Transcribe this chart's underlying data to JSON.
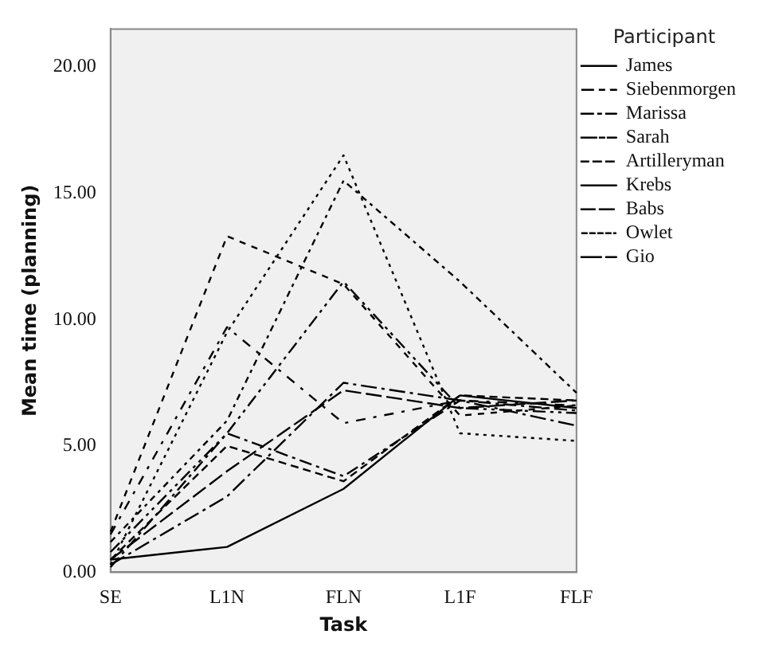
{
  "chart_data": {
    "type": "line",
    "xlabel": "Task",
    "ylabel": "Mean time (planning)",
    "legend_title": "Participant",
    "categories": [
      "SE",
      "L1N",
      "FLN",
      "L1F",
      "FLF"
    ],
    "ylim": [
      0,
      21.5
    ],
    "yticks": [
      {
        "value": 0,
        "label": "0.00"
      },
      {
        "value": 5,
        "label": "5.00"
      },
      {
        "value": 10,
        "label": "10.00"
      },
      {
        "value": 15,
        "label": "15.00"
      },
      {
        "value": 20,
        "label": "20.00"
      }
    ],
    "grid": false,
    "legend": "right",
    "marker": "none",
    "series": [
      {
        "name": "James",
        "color": "#000000",
        "line_style": "solid",
        "values": [
          0.5,
          1.0,
          3.3,
          7.0,
          6.5
        ]
      },
      {
        "name": "Siebenmorgen",
        "color": "#000000",
        "line_style": "dashed",
        "values": [
          1.5,
          9.7,
          5.9,
          6.8,
          6.6
        ]
      },
      {
        "name": "Marissa",
        "color": "#000000",
        "line_style": "dashed",
        "values": [
          0.8,
          5.5,
          11.5,
          6.5,
          6.3
        ]
      },
      {
        "color": "#000000",
        "line_style": "dashed",
        "values": [
          1.6,
          13.3,
          11.4,
          6.2,
          6.6
        ]
      },
      {
        "name": "Sarah",
        "color": "#000000",
        "line_style": "dashed",
        "values": [
          0.3,
          3.0,
          7.5,
          6.8,
          5.8
        ]
      },
      {
        "name": "Artilleryman",
        "color": "#000000",
        "line_style": "dashed",
        "values": [
          0.5,
          5.0,
          3.6,
          7.0,
          6.8
        ]
      },
      {
        "name": "Krebs",
        "color": "#000000",
        "line_style": "dashed",
        "values": [
          0.5,
          4.0,
          7.2,
          6.5,
          6.8
        ]
      },
      {
        "name": "Babs",
        "color": "#000000",
        "line_style": "dashed",
        "values": [
          1.2,
          6.0,
          15.5,
          11.5,
          7.1
        ]
      },
      {
        "name": "Owlet",
        "color": "#000000",
        "line_style": "dotted",
        "values": [
          0.3,
          9.5,
          16.5,
          5.5,
          5.2
        ]
      },
      {
        "name": "Gio",
        "color": "#000000",
        "line_style": "dashed",
        "values": [
          0.2,
          5.5,
          3.8,
          6.8,
          6.4
        ]
      }
    ]
  }
}
